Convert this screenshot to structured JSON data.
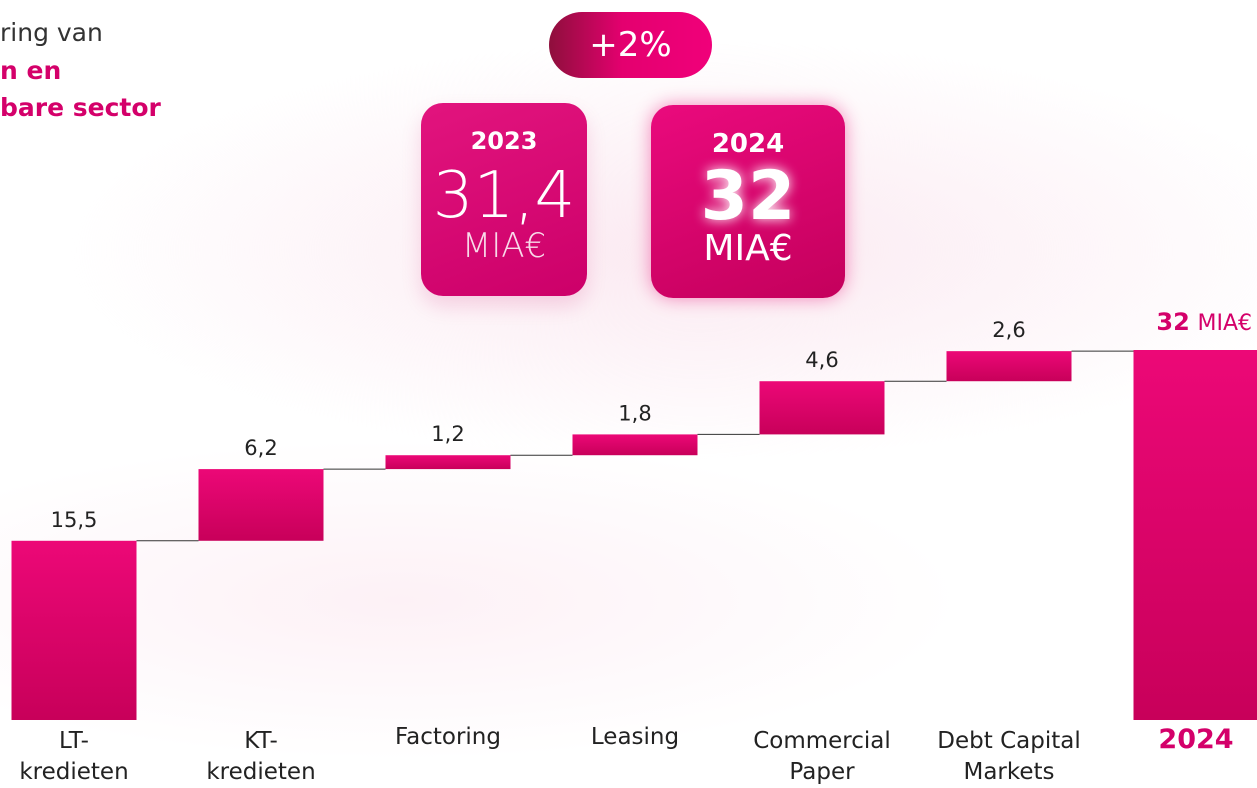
{
  "header": {
    "title_lines": [
      "ring van",
      "n en",
      "bare sector"
    ]
  },
  "badge": "+2%",
  "cards": [
    {
      "year": "2023",
      "value": "31,4",
      "unit": "MIA€"
    },
    {
      "year": "2024",
      "value": "32",
      "unit": "MIA€"
    }
  ],
  "chart_data": {
    "type": "waterfall",
    "categories": [
      "LT-\nkredieten",
      "KT-\nkredieten",
      "Factoring",
      "Leasing",
      "Commercial\nPaper",
      "Debt Capital\nMarkets"
    ],
    "values": [
      15.5,
      6.2,
      1.2,
      1.8,
      4.6,
      2.6
    ],
    "value_labels": [
      "15,5",
      "6,2",
      "1,2",
      "1,8",
      "4,6",
      "2,6"
    ],
    "color": "#e4006f",
    "total": {
      "category": "2024",
      "value": 32,
      "value_label": "32",
      "unit": "MIA€"
    }
  }
}
